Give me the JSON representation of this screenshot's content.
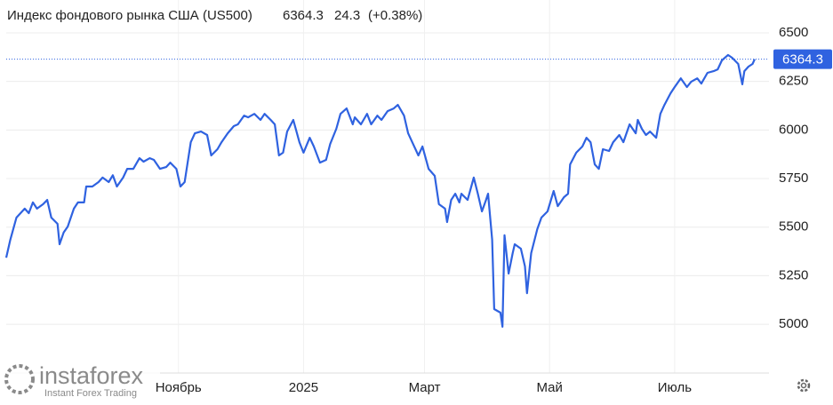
{
  "chart_data": {
    "type": "line",
    "title": "Индекс фондового рынка США (US500)",
    "price": 6364.3,
    "change": 24.3,
    "change_label": "(+0.38%)",
    "x": [
      -23,
      -21,
      -18,
      -16,
      -14,
      -12,
      -10,
      -8,
      -5,
      -3,
      -1,
      2,
      3,
      5,
      7,
      10,
      12,
      15,
      16,
      19,
      22,
      24,
      27,
      29,
      31,
      34,
      36,
      39,
      42,
      44,
      47,
      49,
      52,
      55,
      57,
      60,
      62,
      64,
      67,
      69,
      72,
      75,
      77,
      80,
      82,
      85,
      88,
      90,
      93,
      95,
      98,
      101,
      103,
      106,
      108,
      110,
      112,
      114,
      117,
      120,
      122,
      125,
      127,
      130,
      133,
      135,
      138,
      140,
      143,
      146,
      147,
      150,
      153,
      155,
      158,
      160,
      163,
      166,
      168,
      171,
      173,
      175,
      178,
      180,
      183,
      186,
      188,
      191,
      192,
      194,
      196,
      198,
      199,
      202,
      205,
      207,
      209,
      211,
      212,
      214,
      215,
      218,
      219,
      220,
      222,
      224,
      225,
      228,
      230,
      231,
      233,
      236,
      238,
      241,
      244,
      246,
      249,
      251,
      252,
      255,
      258,
      260,
      262,
      264,
      266,
      268,
      271,
      273,
      276,
      278,
      281,
      284,
      285,
      287,
      289,
      291,
      294,
      296,
      298,
      301,
      303,
      306,
      309,
      311,
      314,
      316,
      319,
      322,
      324,
      326,
      329,
      331,
      334,
      336,
      337,
      339,
      341,
      342
    ],
    "series": [
      {
        "name": "US500",
        "color": "#2f62e0",
        "values": [
          5343,
          5435,
          5549,
          5572,
          5595,
          5572,
          5627,
          5595,
          5618,
          5640,
          5549,
          5517,
          5412,
          5472,
          5503,
          5595,
          5627,
          5627,
          5709,
          5709,
          5732,
          5755,
          5732,
          5767,
          5709,
          5755,
          5800,
          5800,
          5855,
          5837,
          5855,
          5846,
          5800,
          5809,
          5832,
          5800,
          5709,
          5732,
          5937,
          5983,
          5992,
          5974,
          5869,
          5901,
          5937,
          5983,
          6020,
          6029,
          6074,
          6065,
          6083,
          6052,
          6083,
          6052,
          6029,
          5869,
          5883,
          5992,
          6052,
          5937,
          5883,
          5960,
          5915,
          5832,
          5846,
          5928,
          6006,
          6083,
          6111,
          6029,
          6065,
          6029,
          6083,
          6029,
          6074,
          6052,
          6097,
          6111,
          6129,
          6074,
          5983,
          5937,
          5869,
          5915,
          5800,
          5764,
          5618,
          5595,
          5526,
          5640,
          5672,
          5627,
          5672,
          5640,
          5755,
          5672,
          5581,
          5640,
          5672,
          5435,
          5078,
          5060,
          4987,
          5458,
          5261,
          5366,
          5412,
          5389,
          5298,
          5160,
          5366,
          5490,
          5549,
          5581,
          5686,
          5608,
          5654,
          5672,
          5823,
          5883,
          5915,
          5960,
          5937,
          5823,
          5800,
          5901,
          5892,
          5937,
          5974,
          5937,
          6029,
          5983,
          6052,
          6006,
          5974,
          5992,
          5960,
          6083,
          6129,
          6189,
          6221,
          6266,
          6221,
          6248,
          6266,
          6239,
          6294,
          6303,
          6312,
          6358,
          6386,
          6372,
          6340,
          6235,
          6303,
          6326,
          6340,
          6364.3
        ]
      }
    ],
    "xlim": [
      -23,
      349
    ],
    "xticks": [
      {
        "value": 61,
        "label": "Ноябрь"
      },
      {
        "value": 122,
        "label": "2025"
      },
      {
        "value": 181,
        "label": "Март"
      },
      {
        "value": 242,
        "label": "Май"
      },
      {
        "value": 303,
        "label": "Июль"
      }
    ],
    "ylim": [
      4749,
      6669
    ],
    "yticks": [
      5000,
      5250,
      5500,
      5750,
      6000,
      6250,
      6500
    ],
    "grid": true,
    "price_color": "#2f62e0",
    "change_color": "#2ea82e",
    "watermark": {
      "brand": "instaforex",
      "tagline": "Instant Forex Trading"
    }
  }
}
